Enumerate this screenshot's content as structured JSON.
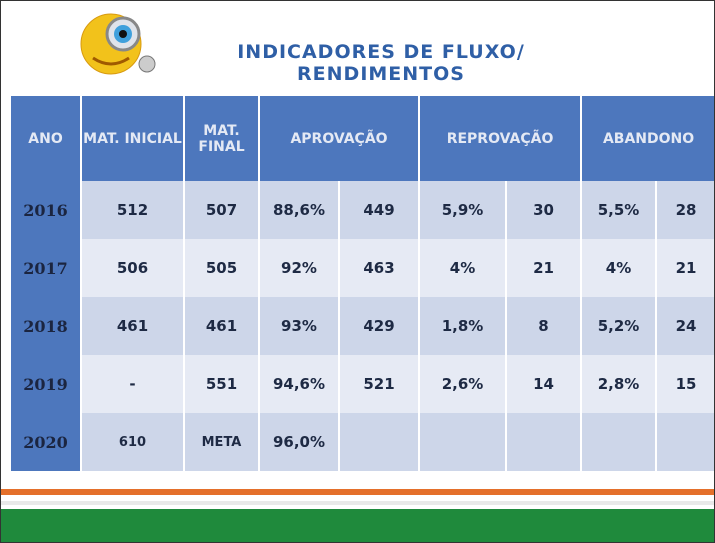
{
  "header": {
    "title_lines": [
      "INDICADORES DE FLUXO/",
      "RENDIMENTOS"
    ]
  },
  "table": {
    "columns": [
      "ANO",
      "MAT. INICIAL",
      "MAT. FINAL",
      "APROVAÇÃO",
      "REPROVAÇÃO",
      "ABANDONO"
    ],
    "rows": [
      [
        "2016",
        "512",
        "507",
        "88,6%",
        "449",
        "5,9%",
        "30",
        "5,5%",
        "28"
      ],
      [
        "2017",
        "506",
        "505",
        "92%",
        "463",
        "4%",
        "21",
        "4%",
        "21"
      ],
      [
        "2018",
        "461",
        "461",
        "93%",
        "429",
        "1,8%",
        "8",
        "5,2%",
        "24"
      ],
      [
        "2019",
        "-",
        "551",
        "94,6%",
        "521",
        "2,6%",
        "14",
        "2,8%",
        "15"
      ],
      [
        "2020",
        "610",
        "META",
        "96,0%"
      ]
    ]
  }
}
